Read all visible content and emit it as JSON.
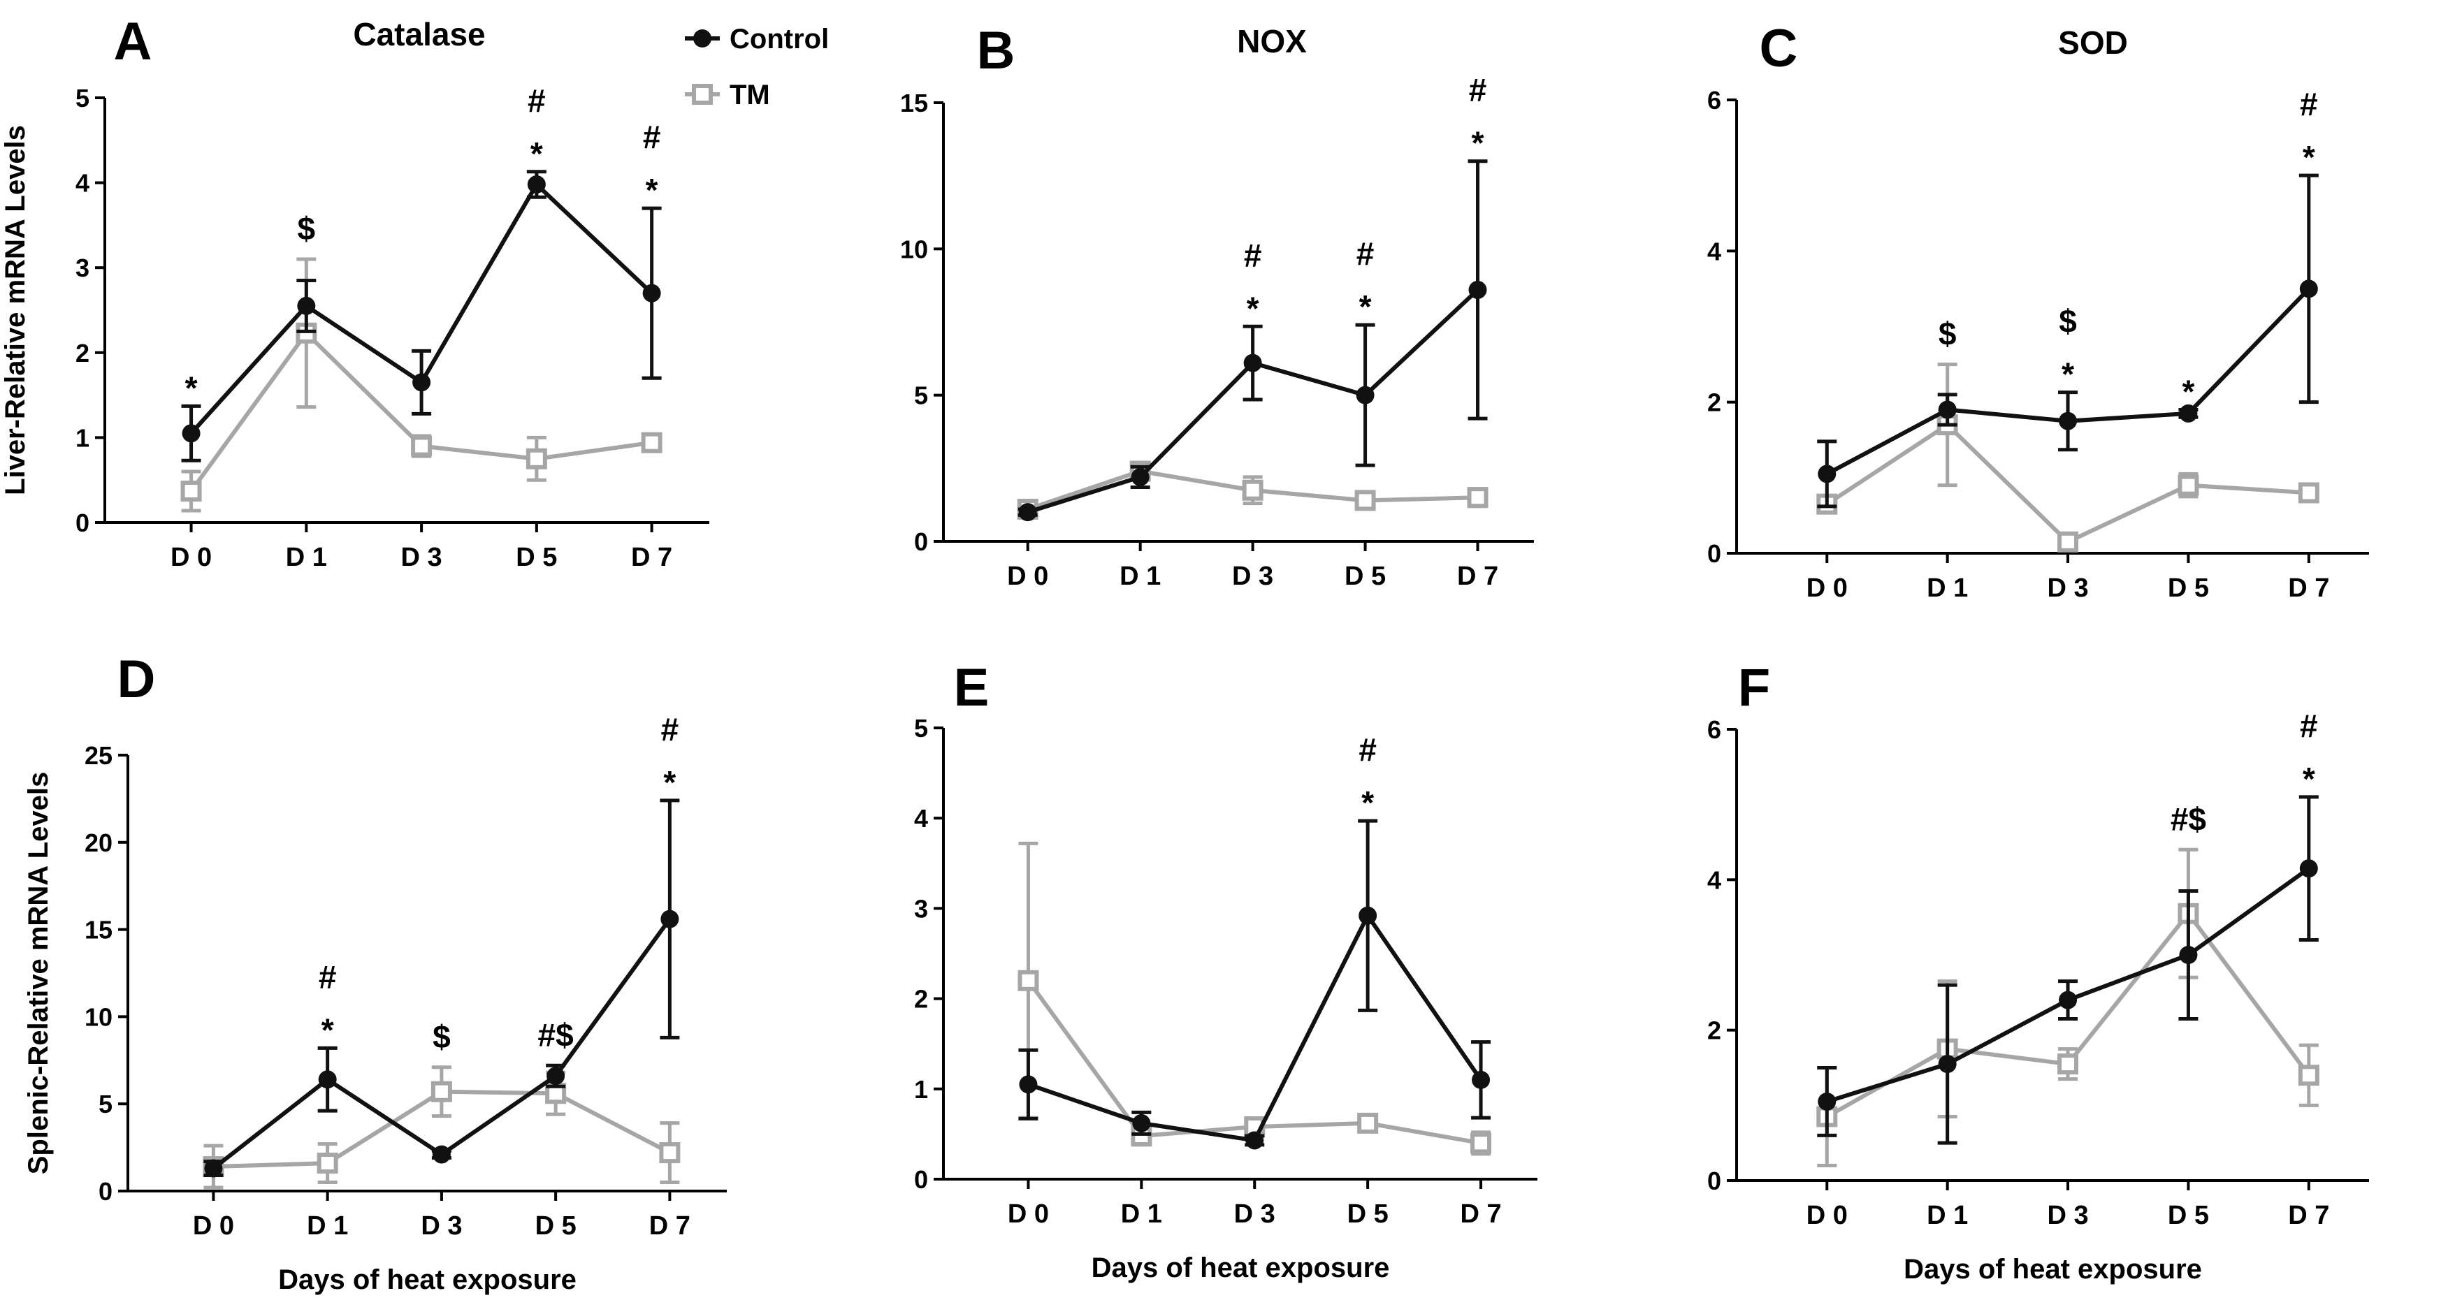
{
  "figure": {
    "legend": [
      {
        "name": "Control",
        "color": "#111111",
        "marker": "filled-circle"
      },
      {
        "name": "TM",
        "color": "#a6a6a6",
        "marker": "open-square"
      }
    ],
    "row_ylabels": [
      "Liver-Relative mRNA Levels",
      "Splenic-Relative mRNA Levels"
    ],
    "xlabel": "Days of heat exposure"
  },
  "chart_data": [
    {
      "panel": "A",
      "title": "Catalase",
      "type": "line",
      "categories": [
        "D 0",
        "D 1",
        "D 3",
        "D 5",
        "D 7"
      ],
      "ylim": [
        0,
        5
      ],
      "yticks": [
        "0",
        "1",
        "2",
        "3",
        "4",
        "5"
      ],
      "ylabel": "Liver-Relative mRNA Levels",
      "xlabel": "",
      "series": [
        {
          "name": "Control",
          "values": [
            1.05,
            2.55,
            1.65,
            3.98,
            2.7
          ],
          "errors": [
            0.32,
            0.3,
            0.37,
            0.15,
            1.0
          ]
        },
        {
          "name": "TM",
          "values": [
            0.37,
            2.23,
            0.9,
            0.75,
            0.94
          ],
          "errors": [
            0.23,
            0.87,
            0.12,
            0.25,
            0.05
          ]
        }
      ],
      "annotations": [
        {
          "category": "D 0",
          "lines": [
            "*"
          ]
        },
        {
          "category": "D 1",
          "lines": [
            "$"
          ]
        },
        {
          "category": "D 5",
          "lines": [
            "#",
            "*"
          ]
        },
        {
          "category": "D 7",
          "lines": [
            "#",
            "*"
          ]
        }
      ]
    },
    {
      "panel": "B",
      "title": "NOX",
      "type": "line",
      "categories": [
        "D 0",
        "D 1",
        "D 3",
        "D 5",
        "D 7"
      ],
      "ylim": [
        0,
        15
      ],
      "yticks": [
        "0",
        "5",
        "10",
        "15"
      ],
      "ylabel": "",
      "xlabel": "",
      "series": [
        {
          "name": "Control",
          "values": [
            1.0,
            2.2,
            6.1,
            5.0,
            8.6
          ],
          "errors": [
            0.1,
            0.35,
            1.25,
            2.4,
            4.4
          ]
        },
        {
          "name": "TM",
          "values": [
            1.1,
            2.4,
            1.75,
            1.4,
            1.5
          ],
          "errors": [
            0.15,
            0.3,
            0.45,
            0.25,
            0.3
          ]
        }
      ],
      "annotations": [
        {
          "category": "D 3",
          "lines": [
            "#",
            "*"
          ]
        },
        {
          "category": "D 5",
          "lines": [
            "#",
            "*"
          ]
        },
        {
          "category": "D 7",
          "lines": [
            "#",
            "*"
          ]
        }
      ]
    },
    {
      "panel": "C",
      "title": "SOD",
      "type": "line",
      "categories": [
        "D 0",
        "D 1",
        "D 3",
        "D 5",
        "D 7"
      ],
      "ylim": [
        0,
        6
      ],
      "yticks": [
        "0",
        "2",
        "4",
        "6"
      ],
      "ylabel": "",
      "xlabel": "",
      "series": [
        {
          "name": "Control",
          "values": [
            1.05,
            1.9,
            1.75,
            1.85,
            3.5
          ],
          "errors": [
            0.43,
            0.2,
            0.38,
            0.05,
            1.5
          ]
        },
        {
          "name": "TM",
          "values": [
            0.65,
            1.7,
            0.15,
            0.9,
            0.8
          ],
          "errors": [
            0.1,
            0.8,
            0.1,
            0.15,
            0.1
          ]
        }
      ],
      "annotations": [
        {
          "category": "D 1",
          "lines": [
            "$"
          ]
        },
        {
          "category": "D 3",
          "lines": [
            "$",
            "*"
          ]
        },
        {
          "category": "D 5",
          "lines": [
            "*"
          ]
        },
        {
          "category": "D 7",
          "lines": [
            "#",
            "*"
          ]
        }
      ]
    },
    {
      "panel": "D",
      "title": "",
      "type": "line",
      "categories": [
        "D 0",
        "D 1",
        "D 3",
        "D 5",
        "D 7"
      ],
      "ylim": [
        0,
        25
      ],
      "yticks": [
        "0",
        "5",
        "10",
        "15",
        "20",
        "25"
      ],
      "ylabel": "Splenic-Relative mRNA Levels",
      "xlabel": "Days of heat exposure",
      "series": [
        {
          "name": "Control",
          "values": [
            1.3,
            6.4,
            2.1,
            6.6,
            15.6
          ],
          "errors": [
            0.4,
            1.8,
            0.2,
            0.6,
            6.8
          ]
        },
        {
          "name": "TM",
          "values": [
            1.4,
            1.6,
            5.7,
            5.6,
            2.2
          ],
          "errors": [
            1.2,
            1.1,
            1.4,
            1.2,
            1.7
          ]
        }
      ],
      "annotations": [
        {
          "category": "D 1",
          "lines": [
            "#",
            "*"
          ]
        },
        {
          "category": "D 3",
          "lines": [
            "$"
          ]
        },
        {
          "category": "D 5",
          "lines": [
            "#$"
          ]
        },
        {
          "category": "D 7",
          "lines": [
            "#",
            "*"
          ]
        }
      ]
    },
    {
      "panel": "E",
      "title": "",
      "type": "line",
      "categories": [
        "D 0",
        "D 1",
        "D 3",
        "D 5",
        "D 7"
      ],
      "ylim": [
        0,
        5
      ],
      "yticks": [
        "0",
        "1",
        "2",
        "3",
        "4",
        "5"
      ],
      "ylabel": "",
      "xlabel": "Days of heat exposure",
      "series": [
        {
          "name": "Control",
          "values": [
            1.05,
            0.62,
            0.43,
            2.92,
            1.1
          ],
          "errors": [
            0.38,
            0.12,
            0.05,
            1.05,
            0.42
          ]
        },
        {
          "name": "TM",
          "values": [
            2.2,
            0.48,
            0.58,
            0.62,
            0.4
          ],
          "errors": [
            1.52,
            0.1,
            0.06,
            0.06,
            0.12
          ]
        }
      ],
      "annotations": [
        {
          "category": "D 5",
          "lines": [
            "#",
            "*"
          ]
        }
      ]
    },
    {
      "panel": "F",
      "title": "",
      "type": "line",
      "categories": [
        "D 0",
        "D 1",
        "D 3",
        "D 5",
        "D 7"
      ],
      "ylim": [
        0,
        6
      ],
      "yticks": [
        "0",
        "2",
        "4",
        "6"
      ],
      "ylabel": "",
      "xlabel": "Days of heat exposure",
      "series": [
        {
          "name": "Control",
          "values": [
            1.05,
            1.55,
            2.4,
            3.0,
            4.15
          ],
          "errors": [
            0.45,
            1.05,
            0.25,
            0.85,
            0.95
          ]
        },
        {
          "name": "TM",
          "values": [
            0.85,
            1.75,
            1.55,
            3.55,
            1.4
          ],
          "errors": [
            0.65,
            0.9,
            0.2,
            0.85,
            0.4
          ]
        }
      ],
      "annotations": [
        {
          "category": "D 5",
          "lines": [
            "#$"
          ]
        },
        {
          "category": "D 7",
          "lines": [
            "#",
            "*"
          ]
        }
      ]
    }
  ]
}
